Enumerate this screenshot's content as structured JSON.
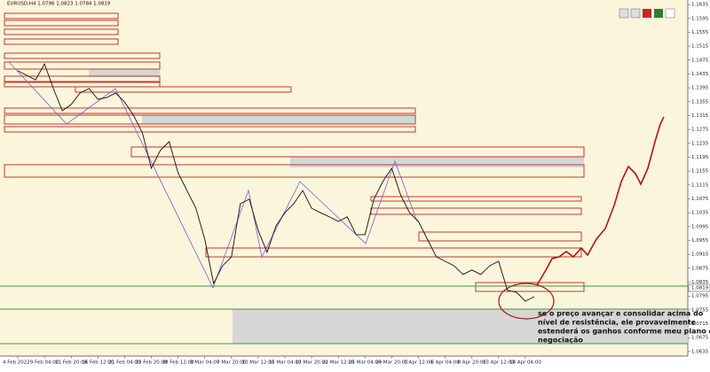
{
  "chart_data": {
    "type": "line",
    "title": "EURUSD,H4 1.0796 1.0823 1.0784 1.0819",
    "last_price": 1.0819,
    "color": "#111111",
    "categories": [
      "4 Feb 2022",
      null,
      null,
      "9 Feb 04:00",
      null,
      null,
      "11 Feb 20:00",
      null,
      null,
      "16 Feb 12:00",
      null,
      null,
      "21 Feb 04:00",
      null,
      null,
      "23 Feb 20:00",
      null,
      null,
      "28 Feb 12:00",
      null,
      null,
      "3 Mar 04:00",
      null,
      null,
      "7 Mar 20:00",
      null,
      null,
      "10 Mar 12:00",
      null,
      null,
      "15 Mar 04:00",
      null,
      null,
      "17 Mar 20:00",
      null,
      null,
      "22 Mar 12:00",
      null,
      null,
      "25 Mar 04:00",
      null,
      null,
      "29 Mar 20:00",
      null,
      null,
      "1 Apr 12:00",
      null,
      null,
      "6 Apr 04:00",
      null,
      null,
      "8 Apr 20:00",
      null,
      null,
      "13 Apr 12:00",
      null,
      null,
      "18 Apr 04:00",
      null
    ],
    "values": [
      1.1444,
      1.1431,
      1.1418,
      1.1464,
      1.1393,
      1.1329,
      1.1347,
      1.138,
      1.1393,
      1.1362,
      1.1367,
      1.138,
      1.1354,
      1.1316,
      1.1265,
      1.1163,
      1.1214,
      1.124,
      1.115,
      1.1099,
      1.1048,
      1.0959,
      1.0831,
      1.0882,
      1.0908,
      1.1061,
      1.1074,
      1.0984,
      1.0921,
      1.0997,
      1.1035,
      1.1061,
      1.1099,
      1.1048,
      1.1035,
      1.1023,
      1.101,
      1.1023,
      1.0972,
      1.0972,
      1.1074,
      1.1125,
      1.1163,
      1.1086,
      1.1035,
      1.101,
      1.0959,
      1.0908,
      1.0895,
      1.0882,
      1.0857,
      1.087,
      1.0857,
      1.0882,
      1.0895,
      1.0811,
      1.0806,
      1.078,
      1.0793
    ],
    "ylim": [
      1.0622,
      1.1648
    ],
    "yticks": [
      1.1635,
      1.1595,
      1.1555,
      1.1515,
      1.1475,
      1.1435,
      1.1395,
      1.1355,
      1.1315,
      1.1275,
      1.1235,
      1.1195,
      1.1155,
      1.1115,
      1.1075,
      1.1035,
      1.0995,
      1.0955,
      1.0915,
      1.0875,
      1.0835,
      1.0795,
      1.0755,
      1.0715,
      1.0675,
      1.0635
    ],
    "annotations": [
      "se o preço avançar e consolidar acima do",
      "nível de resistência, ele provavelmente",
      "estenderá os ganhos conforme meu plano de",
      "negociação"
    ]
  }
}
